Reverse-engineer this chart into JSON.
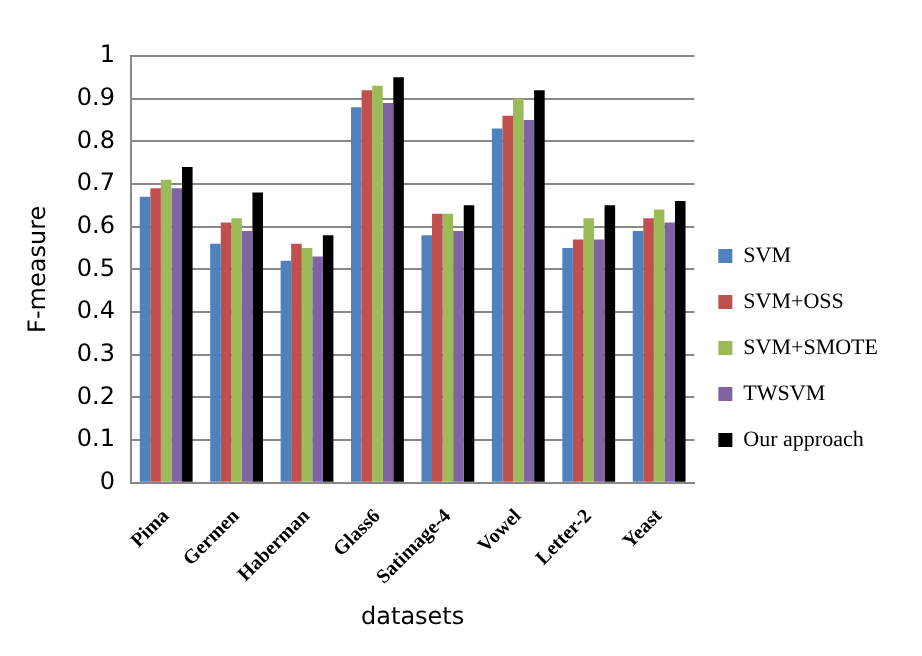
{
  "chart_data": {
    "type": "bar",
    "xlabel": "datasets",
    "ylabel": "F-measure",
    "categories": [
      "Pima",
      "Germen",
      "Haberman",
      "Glass6",
      "Satimage-4",
      "Vowel",
      "Letter-2",
      "Yeast"
    ],
    "series": [
      {
        "name": "SVM",
        "color": "#4f81bd",
        "values": [
          0.67,
          0.56,
          0.52,
          0.88,
          0.58,
          0.83,
          0.55,
          0.59
        ]
      },
      {
        "name": "SVM+OSS",
        "color": "#c0504d",
        "values": [
          0.69,
          0.61,
          0.56,
          0.92,
          0.63,
          0.86,
          0.57,
          0.62
        ]
      },
      {
        "name": "SVM+SMOTE",
        "color": "#9bbb59",
        "values": [
          0.71,
          0.62,
          0.55,
          0.93,
          0.63,
          0.9,
          0.62,
          0.64
        ]
      },
      {
        "name": "TWSVM",
        "color": "#8064a2",
        "values": [
          0.69,
          0.59,
          0.53,
          0.89,
          0.59,
          0.85,
          0.57,
          0.61
        ]
      },
      {
        "name": "Our approach",
        "color": "#000000",
        "values": [
          0.74,
          0.68,
          0.58,
          0.95,
          0.65,
          0.92,
          0.65,
          0.66
        ]
      }
    ],
    "ylim": [
      0,
      1
    ],
    "yticks": [
      0,
      0.1,
      0.2,
      0.3,
      0.4,
      0.5,
      0.6,
      0.7,
      0.8,
      0.9,
      1
    ],
    "grid": "y",
    "legend": "right"
  }
}
